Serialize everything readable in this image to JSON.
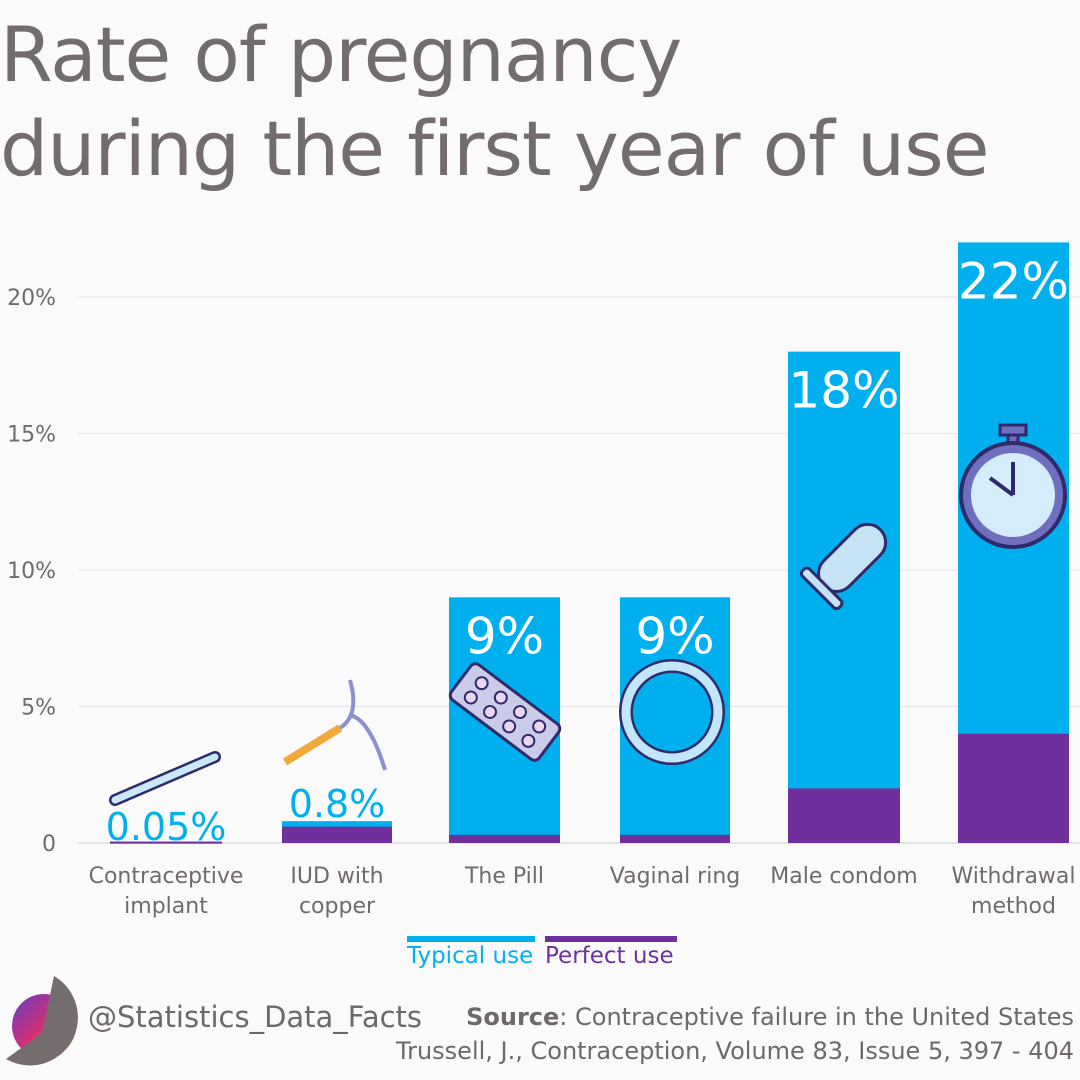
{
  "title_lines": [
    "Rate of pregnancy",
    "during the first year of use"
  ],
  "chart_data": {
    "type": "bar",
    "stacked": "overlay",
    "categories": [
      [
        "Contraceptive",
        "implant"
      ],
      [
        "IUD with",
        "copper"
      ],
      [
        "The Pill"
      ],
      [
        "Vaginal ring"
      ],
      [
        "Male condom"
      ],
      [
        "Withdrawal",
        "method"
      ]
    ],
    "series": [
      {
        "name": "Typical use",
        "color": "#00b0ee",
        "values": [
          0.05,
          0.8,
          9,
          9,
          18,
          22
        ]
      },
      {
        "name": "Perfect use",
        "color": "#6f2f9d",
        "values": [
          0.05,
          0.6,
          0.3,
          0.3,
          2,
          4
        ]
      }
    ],
    "data_labels": [
      "0.05%",
      "0.8%",
      "9%",
      "9%",
      "18%",
      "22%"
    ],
    "icons": [
      "implant-rod-icon",
      "iud-icon",
      "pill-pack-icon",
      "vaginal-ring-icon",
      "condom-icon",
      "stopwatch-icon"
    ],
    "ylim": [
      0,
      22
    ],
    "yticks": [
      0,
      5,
      10,
      15,
      20
    ],
    "ytick_labels": [
      "0",
      "5%",
      "10%",
      "15%",
      "20%"
    ],
    "grid": true,
    "legend_position": "bottom-center"
  },
  "footer": {
    "handle": "@Statistics_Data_Facts",
    "source_label": "Source",
    "source_text": ": Contraceptive failure in the United States",
    "citation": "Trussell, J., Contraception, Volume 83, Issue 5, 397 - 404"
  }
}
